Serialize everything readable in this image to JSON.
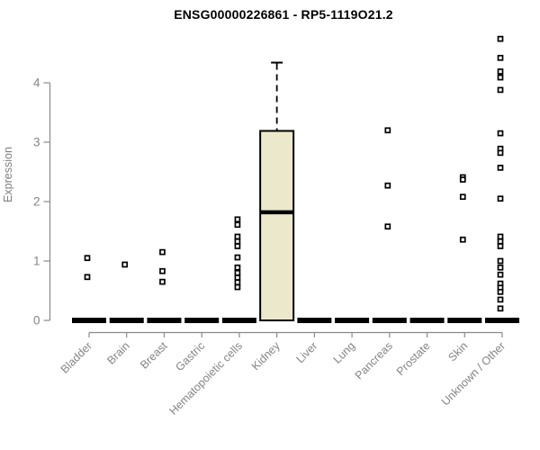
{
  "page": {
    "background": "#ffffff"
  },
  "chart_data": {
    "type": "boxplot",
    "title": "ENSG00000226861 - RP5-1119O21.2",
    "ylabel": "Expression",
    "xlabel": "",
    "ylim": [
      0,
      4.8
    ],
    "yticks": [
      0,
      1,
      2,
      3,
      4
    ],
    "grid": false,
    "legend": false,
    "categories": [
      "Bladder",
      "Brain",
      "Breast",
      "Gastric",
      "Hematopoietic cells",
      "Kidney",
      "Liver",
      "Lung",
      "Pancreas",
      "Prostate",
      "Skin",
      "Unknown / Other"
    ],
    "boxes": [
      {
        "category": "Bladder",
        "q1": 0,
        "median": 0,
        "q3": 0,
        "whisker_low": 0,
        "whisker_high": 0,
        "points": [
          1.05,
          0.73
        ]
      },
      {
        "category": "Brain",
        "q1": 0,
        "median": 0,
        "q3": 0,
        "whisker_low": 0,
        "whisker_high": 0,
        "points": [
          0.94
        ]
      },
      {
        "category": "Breast",
        "q1": 0,
        "median": 0,
        "q3": 0,
        "whisker_low": 0,
        "whisker_high": 0,
        "points": [
          1.15,
          0.83,
          0.65
        ]
      },
      {
        "category": "Gastric",
        "q1": 0,
        "median": 0,
        "q3": 0,
        "whisker_low": 0,
        "whisker_high": 0,
        "points": []
      },
      {
        "category": "Hematopoietic cells",
        "q1": 0,
        "median": 0,
        "q3": 0,
        "whisker_low": 0,
        "whisker_high": 0,
        "points": [
          1.7,
          1.61,
          1.41,
          1.33,
          1.25,
          1.06,
          0.89,
          0.8,
          0.72,
          0.64,
          0.56
        ]
      },
      {
        "category": "Kidney",
        "q1": 0,
        "median": 1.82,
        "q3": 3.19,
        "whisker_low": 0,
        "whisker_high": 4.34,
        "points": []
      },
      {
        "category": "Liver",
        "q1": 0,
        "median": 0,
        "q3": 0,
        "whisker_low": 0,
        "whisker_high": 0,
        "points": []
      },
      {
        "category": "Lung",
        "q1": 0,
        "median": 0,
        "q3": 0,
        "whisker_low": 0,
        "whisker_high": 0,
        "points": []
      },
      {
        "category": "Pancreas",
        "q1": 0,
        "median": 0,
        "q3": 0,
        "whisker_low": 0,
        "whisker_high": 0,
        "points": [
          3.2,
          2.27,
          1.58
        ]
      },
      {
        "category": "Prostate",
        "q1": 0,
        "median": 0,
        "q3": 0,
        "whisker_low": 0,
        "whisker_high": 0,
        "points": []
      },
      {
        "category": "Skin",
        "q1": 0,
        "median": 0,
        "q3": 0,
        "whisker_low": 0,
        "whisker_high": 0,
        "points": [
          2.41,
          2.37,
          2.08,
          1.36
        ]
      },
      {
        "category": "Unknown / Other",
        "q1": 0,
        "median": 0,
        "q3": 0,
        "whisker_low": 0,
        "whisker_high": 0,
        "points": [
          4.74,
          4.42,
          4.19,
          4.09,
          3.88,
          3.15,
          2.89,
          2.82,
          2.57,
          2.05,
          1.41,
          1.33,
          1.25,
          1.0,
          0.89,
          0.77,
          0.62,
          0.55,
          0.48,
          0.35,
          0.2
        ]
      }
    ],
    "colors": {
      "box_fill": "#ece8cc",
      "box_border": "#000000",
      "median": "#000000",
      "point_stroke": "#000000",
      "point_fill": "#ffffff",
      "axis": "#8a8a8a",
      "tick_text": "#848484",
      "title": "#000000"
    }
  }
}
